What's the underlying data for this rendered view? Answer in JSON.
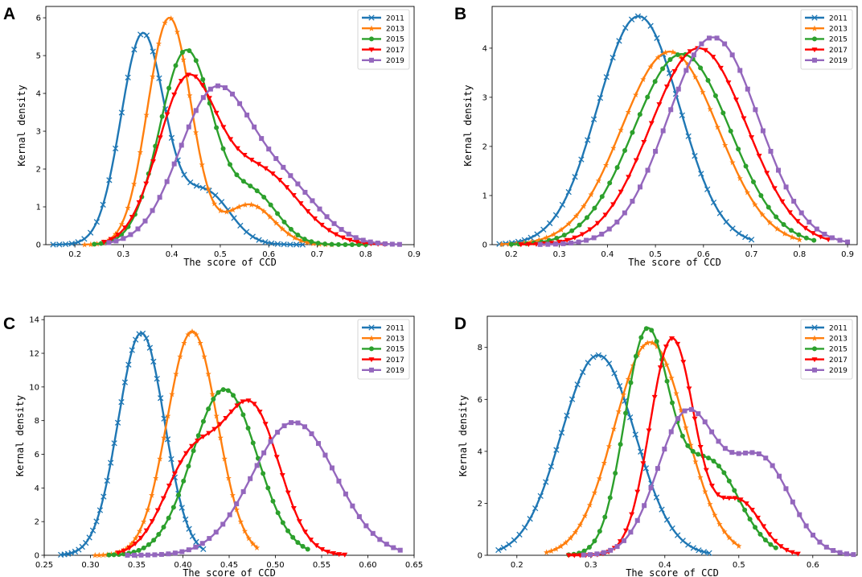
{
  "colors": {
    "2011": "#1f77b4",
    "2013": "#ff7f0e",
    "2015": "#2ca02c",
    "2017": "#ff0000",
    "2019": "#9467bd"
  },
  "chart_data": [
    {
      "panel": "A",
      "type": "line",
      "xlabel": "The score of CCD",
      "ylabel": "Kernal density",
      "xlim": [
        0.14,
        0.9
      ],
      "ylim": [
        0,
        6.3
      ],
      "xticks": [
        0.2,
        0.3,
        0.4,
        0.5,
        0.6,
        0.7,
        0.8,
        0.9
      ],
      "xtick_labels": [
        "0.2",
        "0.3",
        "0.4",
        "0.5",
        "0.6",
        "0.7",
        "0.8",
        "0.9"
      ],
      "yticks": [
        0,
        1,
        2,
        3,
        4,
        5,
        6
      ],
      "ytick_labels": [
        "0",
        "1",
        "2",
        "3",
        "4",
        "5",
        "6"
      ],
      "legend_position": "top-right",
      "series": [
        {
          "name": "2011",
          "marker": "x",
          "mu": [
            0.34,
            0.47
          ],
          "sd": [
            0.045,
            0.05
          ],
          "w": [
            0.8,
            0.2
          ],
          "x_range": [
            0.155,
            0.67
          ],
          "peak": 5.6
        },
        {
          "name": "2013",
          "marker": "star",
          "mu": [
            0.395,
            0.56
          ],
          "sd": [
            0.045,
            0.05
          ],
          "w": [
            0.85,
            0.15
          ],
          "x_range": [
            0.22,
            0.73
          ],
          "peak": 6.0
        },
        {
          "name": "2015",
          "marker": "circle",
          "mu": [
            0.43,
            0.57
          ],
          "sd": [
            0.055,
            0.05
          ],
          "w": [
            0.8,
            0.2
          ],
          "x_range": [
            0.24,
            0.8
          ],
          "peak": 5.15
        },
        {
          "name": "2017",
          "marker": "triangle-down",
          "mu": [
            0.43,
            0.58
          ],
          "sd": [
            0.06,
            0.08
          ],
          "w": [
            0.68,
            0.32
          ],
          "x_range": [
            0.26,
            0.84
          ],
          "peak": 4.5
        },
        {
          "name": "2019",
          "marker": "square",
          "mu": [
            0.49,
            0.64
          ],
          "sd": [
            0.075,
            0.07
          ],
          "w": [
            0.75,
            0.25
          ],
          "x_range": [
            0.27,
            0.87
          ],
          "peak": 4.2
        }
      ]
    },
    {
      "panel": "B",
      "type": "line",
      "xlabel": "The score of CCD",
      "ylabel": "Kernal density",
      "xlim": [
        0.16,
        0.92
      ],
      "ylim": [
        0,
        4.85
      ],
      "xticks": [
        0.2,
        0.3,
        0.4,
        0.5,
        0.6,
        0.7,
        0.8,
        0.9
      ],
      "xtick_labels": [
        "0.2",
        "0.3",
        "0.4",
        "0.5",
        "0.6",
        "0.7",
        "0.8",
        "0.9"
      ],
      "yticks": [
        0,
        1,
        2,
        3,
        4
      ],
      "ytick_labels": [
        "0",
        "1",
        "2",
        "3",
        "4"
      ],
      "legend_position": "top-right",
      "series": [
        {
          "name": "2011",
          "marker": "x",
          "mu": [
            0.465
          ],
          "sd": [
            0.085
          ],
          "w": [
            1
          ],
          "x_range": [
            0.175,
            0.7
          ],
          "peak": 4.65
        },
        {
          "name": "2013",
          "marker": "star",
          "mu": [
            0.53
          ],
          "sd": [
            0.1
          ],
          "w": [
            1
          ],
          "x_range": [
            0.18,
            0.8
          ],
          "peak": 3.93
        },
        {
          "name": "2015",
          "marker": "circle",
          "mu": [
            0.555
          ],
          "sd": [
            0.1
          ],
          "w": [
            1
          ],
          "x_range": [
            0.2,
            0.83
          ],
          "peak": 3.88
        },
        {
          "name": "2017",
          "marker": "triangle-down",
          "mu": [
            0.59
          ],
          "sd": [
            0.1
          ],
          "w": [
            1
          ],
          "x_range": [
            0.22,
            0.86
          ],
          "peak": 4.0
        },
        {
          "name": "2019",
          "marker": "square",
          "mu": [
            0.62
          ],
          "sd": [
            0.095
          ],
          "w": [
            1
          ],
          "x_range": [
            0.26,
            0.9
          ],
          "peak": 4.22
        }
      ]
    },
    {
      "panel": "C",
      "type": "line",
      "xlabel": "The score of CCD",
      "ylabel": "Kernal density",
      "xlim": [
        0.25,
        0.65
      ],
      "ylim": [
        0,
        14.2
      ],
      "xticks": [
        0.25,
        0.3,
        0.35,
        0.4,
        0.45,
        0.5,
        0.55,
        0.6,
        0.65
      ],
      "xtick_labels": [
        "0.25",
        "0.30",
        "0.35",
        "0.40",
        "0.45",
        "0.50",
        "0.55",
        "0.60",
        "0.65"
      ],
      "yticks": [
        0,
        2,
        4,
        6,
        8,
        10,
        12,
        14
      ],
      "ytick_labels": [
        "0",
        "2",
        "4",
        "6",
        "8",
        "10",
        "12",
        "14"
      ],
      "legend_position": "top-right",
      "series": [
        {
          "name": "2011",
          "marker": "x",
          "mu": [
            0.355
          ],
          "sd": [
            0.025
          ],
          "w": [
            1
          ],
          "x_range": [
            0.268,
            0.422
          ],
          "peak": 13.2
        },
        {
          "name": "2013",
          "marker": "star",
          "mu": [
            0.41
          ],
          "sd": [
            0.027
          ],
          "w": [
            1
          ],
          "x_range": [
            0.305,
            0.48
          ],
          "peak": 13.3
        },
        {
          "name": "2015",
          "marker": "circle",
          "mu": [
            0.445
          ],
          "sd": [
            0.035
          ],
          "w": [
            1
          ],
          "x_range": [
            0.32,
            0.535
          ],
          "peak": 9.85
        },
        {
          "name": "2017",
          "marker": "triangle-down",
          "mu": [
            0.41,
            0.475
          ],
          "sd": [
            0.03,
            0.03
          ],
          "w": [
            0.4,
            0.6
          ],
          "x_range": [
            0.33,
            0.575
          ],
          "peak": 9.2
        },
        {
          "name": "2019",
          "marker": "square",
          "mu": [
            0.52
          ],
          "sd": [
            0.045
          ],
          "w": [
            1
          ],
          "x_range": [
            0.34,
            0.635
          ],
          "peak": 7.9
        }
      ]
    },
    {
      "panel": "D",
      "type": "line",
      "xlabel": "The score of CCD",
      "ylabel": "Kernal density",
      "xlim": [
        0.16,
        0.66
      ],
      "ylim": [
        0,
        9.2
      ],
      "xticks": [
        0.2,
        0.3,
        0.4,
        0.5,
        0.6
      ],
      "xtick_labels": [
        "0.2",
        "0.3",
        "0.4",
        "0.5",
        "0.6"
      ],
      "yticks": [
        0,
        2,
        4,
        6,
        8
      ],
      "ytick_labels": [
        "0",
        "2",
        "4",
        "6",
        "8"
      ],
      "legend_position": "top-right",
      "series": [
        {
          "name": "2011",
          "marker": "x",
          "mu": [
            0.31
          ],
          "sd": [
            0.05
          ],
          "w": [
            1
          ],
          "x_range": [
            0.175,
            0.46
          ],
          "peak": 7.7
        },
        {
          "name": "2013",
          "marker": "star",
          "mu": [
            0.38
          ],
          "sd": [
            0.048
          ],
          "w": [
            1
          ],
          "x_range": [
            0.24,
            0.5
          ],
          "peak": 8.2
        },
        {
          "name": "2015",
          "marker": "circle",
          "mu": [
            0.375,
            0.46
          ],
          "sd": [
            0.03,
            0.04
          ],
          "w": [
            0.7,
            0.3
          ],
          "x_range": [
            0.27,
            0.55
          ],
          "peak": 8.75
        },
        {
          "name": "2017",
          "marker": "triangle-down",
          "mu": [
            0.41,
            0.5
          ],
          "sd": [
            0.03,
            0.03
          ],
          "w": [
            0.8,
            0.2
          ],
          "x_range": [
            0.27,
            0.58
          ],
          "peak": 8.35
        },
        {
          "name": "2019",
          "marker": "square",
          "mu": [
            0.43,
            0.53
          ],
          "sd": [
            0.04,
            0.04
          ],
          "w": [
            0.6,
            0.4
          ],
          "x_range": [
            0.29,
            0.655
          ],
          "peak": 5.62
        }
      ]
    }
  ]
}
